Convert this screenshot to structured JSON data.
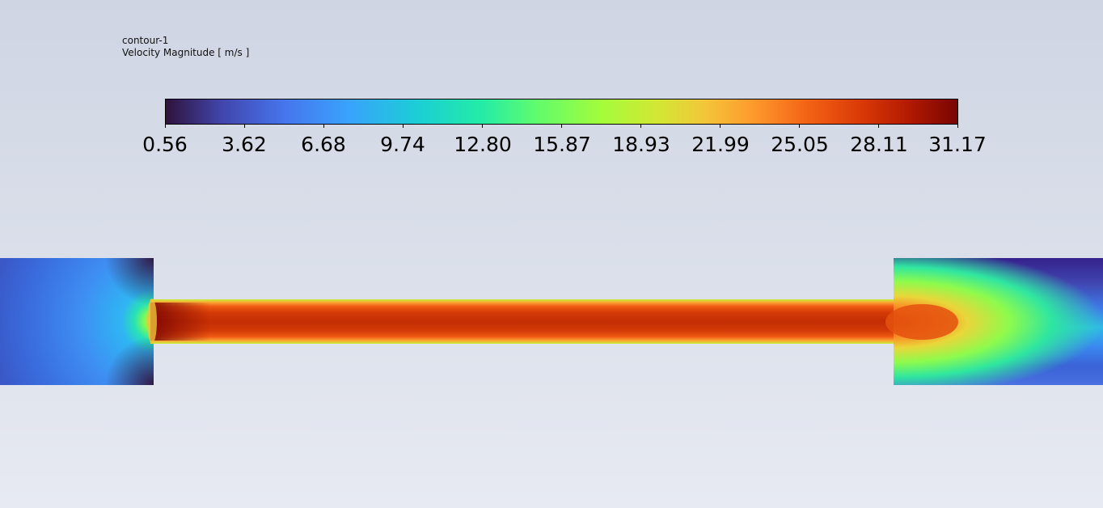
{
  "legend": {
    "contour_name": "contour-1",
    "variable": "Velocity Magnitude [ m/s ]",
    "colormap": "turbo",
    "ticks": [
      "0.56",
      "3.62",
      "6.68",
      "9.74",
      "12.80",
      "15.87",
      "18.93",
      "21.99",
      "25.05",
      "28.11",
      "31.17"
    ]
  },
  "colors": {
    "background_top": "#cfd5e3",
    "background_bottom": "#e7eaf2"
  }
}
